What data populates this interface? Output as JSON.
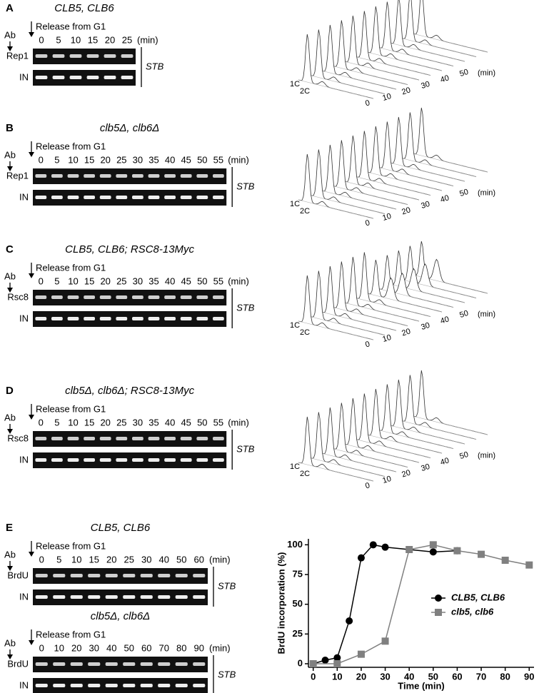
{
  "panels": [
    {
      "letter": "A",
      "title": "CLB5, CLB6",
      "ab": "Ab",
      "release": "Release from G1",
      "times": [
        0,
        5,
        10,
        15,
        20,
        25
      ],
      "unit": "(min)",
      "rows": [
        "Rep1",
        "IN"
      ],
      "region": "STB",
      "flow": {
        "peaks": [
          "1C",
          "2C"
        ],
        "ticks": [
          0,
          10,
          20,
          30,
          40,
          50
        ],
        "unit": "(min)"
      }
    },
    {
      "letter": "B",
      "title": "clb5Δ, clb6Δ",
      "ab": "Ab",
      "release": "Release from G1",
      "times": [
        0,
        5,
        10,
        15,
        20,
        25,
        30,
        35,
        40,
        45,
        50,
        55
      ],
      "unit": "(min)",
      "rows": [
        "Rep1",
        "IN"
      ],
      "region": "STB",
      "flow": {
        "peaks": [
          "1C",
          "2C"
        ],
        "ticks": [
          0,
          10,
          20,
          30,
          40,
          50
        ],
        "unit": "(min)"
      }
    },
    {
      "letter": "C",
      "title": "CLB5, CLB6; RSC8-13Myc",
      "ab": "Ab",
      "release": "Release from G1",
      "times": [
        0,
        5,
        10,
        15,
        20,
        25,
        30,
        35,
        40,
        45,
        50,
        55
      ],
      "unit": "(min)",
      "rows": [
        "Rsc8",
        "IN"
      ],
      "region": "STB",
      "flow": {
        "peaks": [
          "1C",
          "2C"
        ],
        "ticks": [
          0,
          10,
          20,
          30,
          40,
          50
        ],
        "unit": "(min)"
      }
    },
    {
      "letter": "D",
      "title": "clb5Δ, clb6Δ; RSC8-13Myc",
      "ab": "Ab",
      "release": "Release from G1",
      "times": [
        0,
        5,
        10,
        15,
        20,
        25,
        30,
        35,
        40,
        45,
        50,
        55
      ],
      "unit": "(min)",
      "rows": [
        "Rsc8",
        "IN"
      ],
      "region": "STB",
      "flow": {
        "peaks": [
          "1C",
          "2C"
        ],
        "ticks": [
          0,
          10,
          20,
          30,
          40,
          50
        ],
        "unit": "(min)"
      }
    }
  ],
  "panel_e": {
    "letter": "E",
    "gels": [
      {
        "title": "CLB5, CLB6",
        "ab": "Ab",
        "release": "Release from G1",
        "times": [
          0,
          5,
          10,
          15,
          20,
          25,
          30,
          40,
          50,
          60
        ],
        "unit": "(min)",
        "rows": [
          "BrdU",
          "IN"
        ],
        "region": "STB"
      },
      {
        "title": "clb5Δ, clb6Δ",
        "ab": "Ab",
        "release": "Release from G1",
        "times": [
          0,
          10,
          20,
          30,
          40,
          50,
          60,
          70,
          80,
          90
        ],
        "unit": "(min)",
        "rows": [
          "BrdU",
          "IN"
        ],
        "region": "STB"
      }
    ],
    "chart_data": {
      "type": "line",
      "x_label": "Time (min)",
      "y_label": "BrdU incorporation (%)",
      "xlim": [
        -2,
        92
      ],
      "ylim": [
        -3,
        105
      ],
      "xticks": [
        0,
        10,
        20,
        30,
        40,
        50,
        60,
        70,
        80,
        90
      ],
      "yticks": [
        0,
        25,
        50,
        75,
        100
      ],
      "series": [
        {
          "name": "CLB5, CLB6",
          "color": "#000000",
          "marker": "circle",
          "x": [
            0,
            5,
            10,
            15,
            20,
            25,
            30,
            40,
            50,
            60
          ],
          "values": [
            0,
            3,
            5,
            36,
            89,
            100,
            98,
            96,
            94,
            95
          ]
        },
        {
          "name": "clb5, clb6",
          "color": "#808080",
          "marker": "square",
          "x": [
            0,
            10,
            20,
            30,
            40,
            50,
            60,
            70,
            80,
            90
          ],
          "values": [
            0,
            0,
            8,
            19,
            96,
            100,
            95,
            92,
            87,
            83
          ]
        }
      ]
    }
  }
}
